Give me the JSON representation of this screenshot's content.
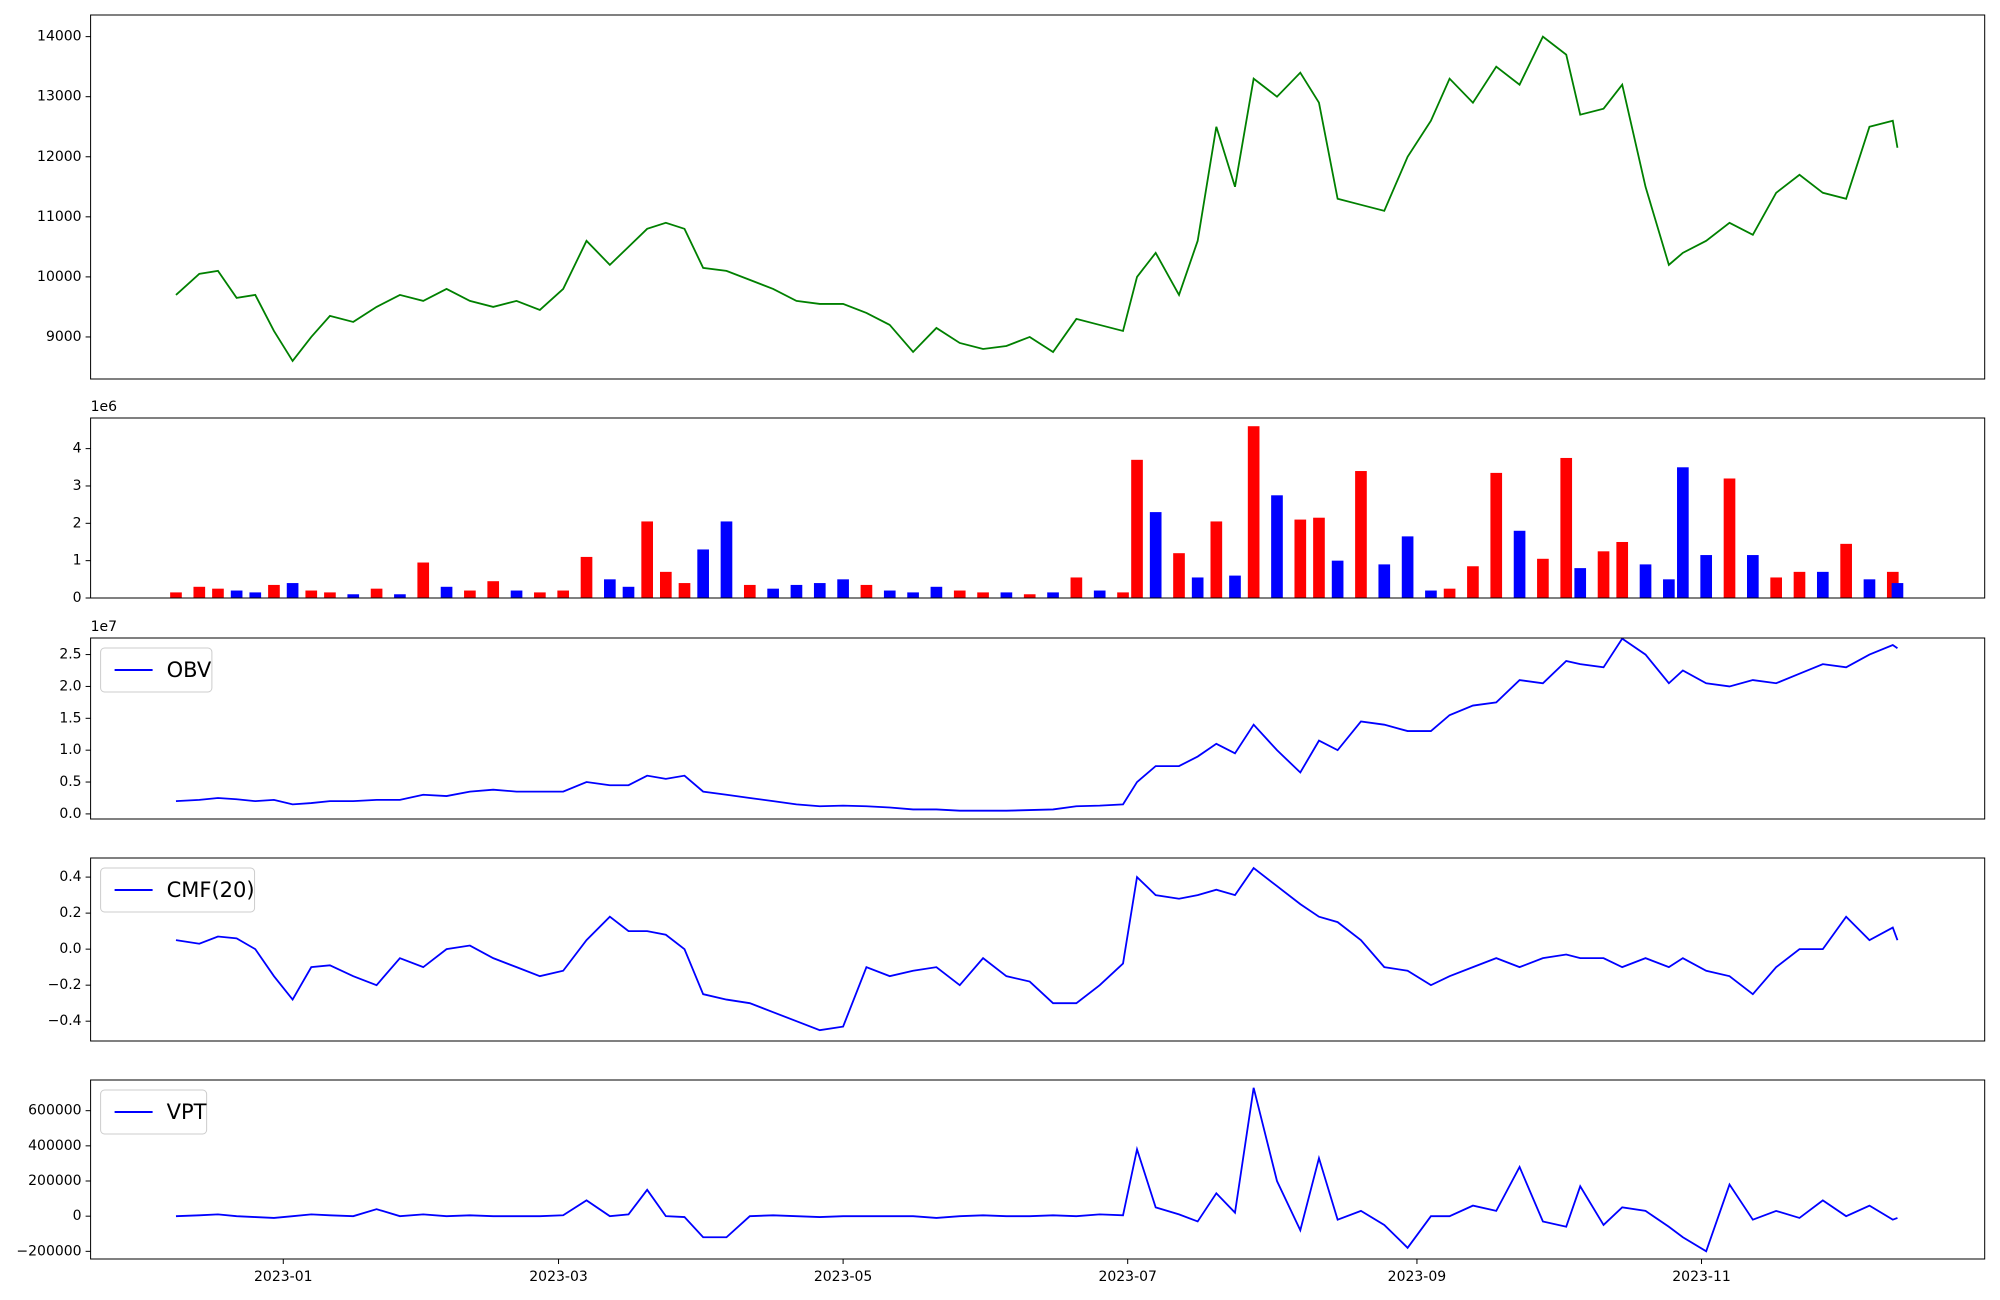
{
  "chart_data": [
    {
      "type": "line",
      "color": "green",
      "x": [
        -23,
        -18,
        -14,
        -10,
        -6,
        -2,
        2,
        6,
        10,
        15,
        20,
        25,
        30,
        35,
        40,
        45,
        50,
        55,
        60,
        65,
        70,
        74,
        78,
        82,
        86,
        90,
        95,
        100,
        105,
        110,
        115,
        120,
        125,
        130,
        135,
        140,
        145,
        150,
        155,
        160,
        165,
        170,
        175,
        180,
        183,
        187,
        192,
        196,
        200,
        204,
        208,
        213,
        218,
        222,
        226,
        231,
        236,
        241,
        246,
        250,
        255,
        260,
        265,
        270,
        275,
        278,
        283,
        287,
        292,
        297,
        300,
        305,
        310,
        315,
        320,
        325,
        330,
        335,
        340,
        345,
        346
      ],
      "values": [
        9700,
        10050,
        10100,
        9650,
        9700,
        9100,
        8600,
        9000,
        9350,
        9250,
        9500,
        9700,
        9600,
        9800,
        9600,
        9500,
        9600,
        9450,
        9800,
        10600,
        10200,
        10500,
        10800,
        10900,
        10800,
        10150,
        10100,
        9950,
        9800,
        9600,
        9550,
        9550,
        9400,
        9200,
        8750,
        9150,
        8900,
        8800,
        8850,
        9000,
        8750,
        9300,
        9200,
        9100,
        10000,
        10400,
        9700,
        10600,
        12500,
        11500,
        13300,
        13000,
        13400,
        12900,
        11300,
        11200,
        11100,
        12000,
        12600,
        13300,
        12900,
        13500,
        13200,
        14000,
        13700,
        12700,
        12800,
        13200,
        11500,
        10200,
        10400,
        10600,
        10900,
        10700,
        11400,
        11700,
        11400,
        11300,
        12500,
        12600,
        12150
      ],
      "xlim": [
        -41.3,
        364.7
      ],
      "ylim": [
        8300,
        14360
      ],
      "yticks": [
        9000,
        10000,
        11000,
        12000,
        13000,
        14000
      ]
    },
    {
      "type": "bar",
      "offset_text": "1e6",
      "x": [
        -23,
        -18,
        -14,
        -10,
        -6,
        -2,
        2,
        6,
        10,
        15,
        20,
        25,
        30,
        35,
        40,
        45,
        50,
        55,
        60,
        65,
        70,
        74,
        78,
        82,
        86,
        90,
        95,
        100,
        105,
        110,
        115,
        120,
        125,
        130,
        135,
        140,
        145,
        150,
        155,
        160,
        165,
        170,
        175,
        180,
        183,
        187,
        192,
        196,
        200,
        204,
        208,
        213,
        218,
        222,
        226,
        231,
        236,
        241,
        246,
        250,
        255,
        260,
        265,
        270,
        275,
        278,
        283,
        287,
        292,
        297,
        300,
        305,
        310,
        315,
        320,
        325,
        330,
        335,
        340,
        345,
        346
      ],
      "values": [
        0.15,
        0.3,
        0.25,
        0.2,
        0.15,
        0.35,
        0.4,
        0.2,
        0.15,
        0.1,
        0.25,
        0.1,
        0.95,
        0.3,
        0.2,
        0.45,
        0.2,
        0.15,
        0.2,
        1.1,
        0.5,
        0.3,
        2.05,
        0.7,
        0.4,
        1.3,
        2.05,
        0.35,
        0.25,
        0.35,
        0.4,
        0.5,
        0.35,
        0.2,
        0.15,
        0.3,
        0.2,
        0.15,
        0.15,
        0.1,
        0.15,
        0.55,
        0.2,
        0.15,
        3.7,
        2.3,
        1.2,
        0.55,
        2.05,
        0.6,
        4.6,
        2.75,
        2.1,
        2.15,
        1.0,
        3.4,
        0.9,
        1.65,
        0.2,
        0.25,
        0.85,
        3.35,
        1.8,
        1.05,
        3.75,
        0.8,
        1.25,
        1.5,
        0.9,
        0.5,
        3.5,
        1.15,
        3.2,
        1.15,
        0.55,
        0.7,
        0.7,
        1.45,
        0.5,
        0.7,
        0.4
      ],
      "bar_colors": [
        "red",
        "red",
        "red",
        "blue",
        "blue",
        "red",
        "blue",
        "red",
        "red",
        "blue",
        "red",
        "blue",
        "red",
        "blue",
        "red",
        "red",
        "blue",
        "red",
        "red",
        "red",
        "blue",
        "blue",
        "red",
        "red",
        "red",
        "blue",
        "blue",
        "red",
        "blue",
        "blue",
        "blue",
        "blue",
        "red",
        "blue",
        "blue",
        "blue",
        "red",
        "red",
        "blue",
        "red",
        "blue",
        "red",
        "blue",
        "red",
        "red",
        "blue",
        "red",
        "blue",
        "red",
        "blue",
        "red",
        "blue",
        "red",
        "red",
        "blue",
        "red",
        "blue",
        "blue",
        "blue",
        "red",
        "red",
        "red",
        "blue",
        "red",
        "red",
        "blue",
        "red",
        "red",
        "blue",
        "blue",
        "blue",
        "blue",
        "red",
        "blue",
        "red",
        "red",
        "blue",
        "red",
        "blue",
        "red",
        "blue"
      ],
      "xlim": [
        -41.3,
        364.7
      ],
      "ylim": [
        0,
        4.82
      ],
      "yticks": [
        0,
        1,
        2,
        3,
        4
      ]
    },
    {
      "type": "line",
      "offset_text": "1e7",
      "legend": "upper left",
      "x": [
        -23,
        -18,
        -14,
        -10,
        -6,
        -2,
        2,
        6,
        10,
        15,
        20,
        25,
        30,
        35,
        40,
        45,
        50,
        55,
        60,
        65,
        70,
        74,
        78,
        82,
        86,
        90,
        95,
        100,
        105,
        110,
        115,
        120,
        125,
        130,
        135,
        140,
        145,
        150,
        155,
        160,
        165,
        170,
        175,
        180,
        183,
        187,
        192,
        196,
        200,
        204,
        208,
        213,
        218,
        222,
        226,
        231,
        236,
        241,
        246,
        250,
        255,
        260,
        265,
        270,
        275,
        278,
        283,
        287,
        292,
        297,
        300,
        305,
        310,
        315,
        320,
        325,
        330,
        335,
        340,
        345,
        346
      ],
      "series": [
        {
          "name": "OBV",
          "color": "blue",
          "values": [
            0.2,
            0.22,
            0.25,
            0.23,
            0.2,
            0.22,
            0.15,
            0.17,
            0.2,
            0.2,
            0.22,
            0.22,
            0.3,
            0.28,
            0.35,
            0.38,
            0.35,
            0.35,
            0.35,
            0.5,
            0.45,
            0.45,
            0.6,
            0.55,
            0.6,
            0.35,
            0.3,
            0.25,
            0.2,
            0.15,
            0.12,
            0.13,
            0.12,
            0.1,
            0.07,
            0.07,
            0.05,
            0.05,
            0.05,
            0.06,
            0.07,
            0.12,
            0.13,
            0.15,
            0.5,
            0.75,
            0.75,
            0.9,
            1.1,
            0.95,
            1.4,
            1.0,
            0.65,
            1.15,
            1.0,
            1.45,
            1.4,
            1.3,
            1.3,
            1.55,
            1.7,
            1.75,
            2.1,
            2.05,
            2.4,
            2.35,
            2.3,
            2.75,
            2.5,
            2.05,
            2.25,
            2.05,
            2.0,
            2.1,
            2.05,
            2.2,
            2.35,
            2.3,
            2.5,
            2.65,
            2.6
          ]
        }
      ],
      "xlim": [
        -41.3,
        364.7
      ],
      "ylim": [
        -0.08,
        2.76
      ],
      "yticks": [
        {
          "value": 0,
          "label": "0.0"
        },
        0.5,
        {
          "value": 1,
          "label": "1.0"
        },
        1.5,
        {
          "value": 2,
          "label": "2.0"
        },
        2.5
      ]
    },
    {
      "type": "line",
      "legend": "upper left",
      "x": [
        -23,
        -18,
        -14,
        -10,
        -6,
        -2,
        2,
        6,
        10,
        15,
        20,
        25,
        30,
        35,
        40,
        45,
        50,
        55,
        60,
        65,
        70,
        74,
        78,
        82,
        86,
        90,
        95,
        100,
        105,
        110,
        115,
        120,
        125,
        130,
        135,
        140,
        145,
        150,
        155,
        160,
        165,
        170,
        175,
        180,
        183,
        187,
        192,
        196,
        200,
        204,
        208,
        213,
        218,
        222,
        226,
        231,
        236,
        241,
        246,
        250,
        255,
        260,
        265,
        270,
        275,
        278,
        283,
        287,
        292,
        297,
        300,
        305,
        310,
        315,
        320,
        325,
        330,
        335,
        340,
        345,
        346
      ],
      "series": [
        {
          "name": "CMF(20)",
          "color": "blue",
          "values": [
            0.05,
            0.03,
            0.07,
            0.06,
            0.0,
            -0.15,
            -0.28,
            -0.1,
            -0.09,
            -0.15,
            -0.2,
            -0.05,
            -0.1,
            0.0,
            0.02,
            -0.05,
            -0.1,
            -0.15,
            -0.12,
            0.05,
            0.18,
            0.1,
            0.1,
            0.08,
            0.0,
            -0.25,
            -0.28,
            -0.3,
            -0.35,
            -0.4,
            -0.45,
            -0.43,
            -0.1,
            -0.15,
            -0.12,
            -0.1,
            -0.2,
            -0.05,
            -0.15,
            -0.18,
            -0.3,
            -0.3,
            -0.2,
            -0.08,
            0.4,
            0.3,
            0.28,
            0.3,
            0.33,
            0.3,
            0.45,
            0.35,
            0.25,
            0.18,
            0.15,
            0.05,
            -0.1,
            -0.12,
            -0.2,
            -0.15,
            -0.1,
            -0.05,
            -0.1,
            -0.05,
            -0.03,
            -0.05,
            -0.05,
            -0.1,
            -0.05,
            -0.1,
            -0.05,
            -0.12,
            -0.15,
            -0.25,
            -0.1,
            0.0,
            0.0,
            0.18,
            0.05,
            0.12,
            0.05
          ]
        }
      ],
      "xlim": [
        -41.3,
        364.7
      ],
      "ylim": [
        -0.51,
        0.506
      ],
      "yticks": [
        {
          "value": -0.4,
          "label": "−0.4"
        },
        {
          "value": -0.2,
          "label": "−0.2"
        },
        {
          "value": 0,
          "label": "0.0"
        },
        0.2,
        0.4
      ]
    },
    {
      "type": "line",
      "legend": "upper left",
      "x": [
        -23,
        -18,
        -14,
        -10,
        -6,
        -2,
        2,
        6,
        10,
        15,
        20,
        25,
        30,
        35,
        40,
        45,
        50,
        55,
        60,
        65,
        70,
        74,
        78,
        82,
        86,
        90,
        95,
        100,
        105,
        110,
        115,
        120,
        125,
        130,
        135,
        140,
        145,
        150,
        155,
        160,
        165,
        170,
        175,
        180,
        183,
        187,
        192,
        196,
        200,
        204,
        208,
        213,
        218,
        222,
        226,
        231,
        236,
        241,
        246,
        250,
        255,
        260,
        265,
        270,
        275,
        278,
        283,
        287,
        292,
        297,
        300,
        305,
        310,
        315,
        320,
        325,
        330,
        335,
        340,
        345,
        346
      ],
      "series": [
        {
          "name": "VPT",
          "color": "blue",
          "values": [
            0,
            5000,
            10000,
            0,
            -5000,
            -10000,
            0,
            10000,
            5000,
            0,
            40000,
            0,
            10000,
            0,
            5000,
            0,
            0,
            0,
            5000,
            90000,
            0,
            10000,
            150000,
            0,
            -5000,
            -120000,
            -120000,
            0,
            5000,
            0,
            -5000,
            0,
            0,
            0,
            0,
            -10000,
            0,
            5000,
            0,
            0,
            5000,
            0,
            10000,
            5000,
            380000,
            50000,
            10000,
            -30000,
            130000,
            20000,
            730000,
            200000,
            -80000,
            330000,
            -20000,
            30000,
            -50000,
            -180000,
            0,
            0,
            60000,
            30000,
            280000,
            -30000,
            -60000,
            170000,
            -50000,
            50000,
            30000,
            -60000,
            -120000,
            -200000,
            180000,
            -20000,
            30000,
            -10000,
            90000,
            0,
            60000,
            -20000,
            -10000
          ]
        }
      ],
      "xlim": [
        -41.3,
        364.7
      ],
      "ylim": [
        -243600,
        774500
      ],
      "yticks": [
        {
          "value": -200000,
          "label": "−200000"
        },
        0,
        200000,
        400000,
        600000
      ],
      "xticks": [
        {
          "value": 0,
          "label": "2023-01"
        },
        {
          "value": 59,
          "label": "2023-03"
        },
        {
          "value": 120,
          "label": "2023-05"
        },
        {
          "value": 181,
          "label": "2023-07"
        },
        {
          "value": 243,
          "label": "2023-09"
        },
        {
          "value": 304,
          "label": "2023-11"
        }
      ]
    }
  ]
}
